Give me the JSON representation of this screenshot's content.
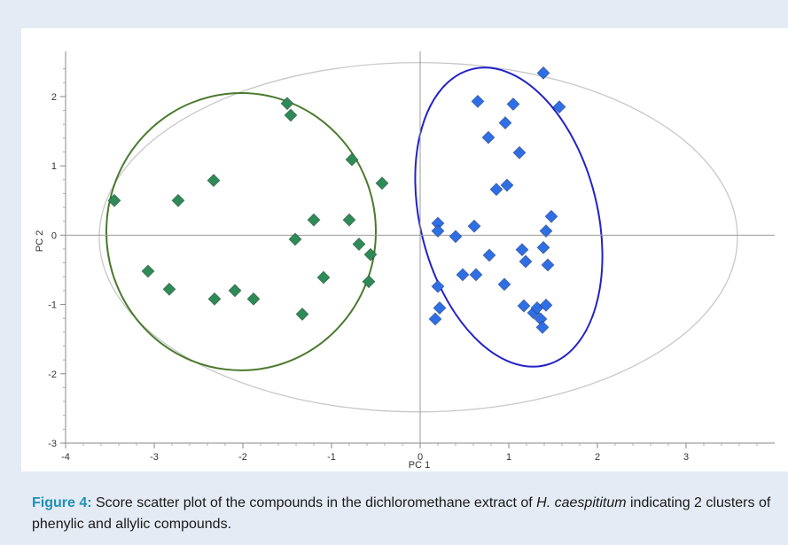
{
  "caption": {
    "label": "Figure 4:",
    "text_before": " Score scatter plot of the compounds in the dichloromethane extract of ",
    "species": "H. caespititum",
    "text_after": " indicating 2 clusters of phenylic and allylic compounds."
  },
  "colors": {
    "panel_background": "#e4ebf5",
    "caption_label": "#1f8fb8",
    "cluster_green": "#2e8b57",
    "cluster_green_outline": "#4a7a2e",
    "cluster_blue": "#2f6fe6",
    "cluster_blue_outline": "#2222c8",
    "hotelling_ellipse": "#c8c8c8"
  },
  "chart_data": {
    "type": "scatter",
    "title": "",
    "xlabel": "PC 1",
    "ylabel": "PC 2",
    "xlim": [
      -4,
      4
    ],
    "ylim": [
      -3,
      2.6
    ],
    "xticks": [
      -4,
      -3,
      -2,
      -1,
      0,
      1,
      2,
      3
    ],
    "yticks": [
      -3,
      -2,
      -1,
      0,
      1,
      2
    ],
    "grid": false,
    "legend": "none",
    "marker": "diamond",
    "series": [
      {
        "color": "#2e8b57",
        "points": [
          [
            -3.45,
            0.5
          ],
          [
            -3.07,
            -0.52
          ],
          [
            -2.83,
            -0.78
          ],
          [
            -2.73,
            0.5
          ],
          [
            -2.33,
            0.79
          ],
          [
            -2.32,
            -0.92
          ],
          [
            -2.09,
            -0.8
          ],
          [
            -1.88,
            -0.92
          ],
          [
            -1.5,
            1.9
          ],
          [
            -1.46,
            1.73
          ],
          [
            -1.41,
            -0.06
          ],
          [
            -1.33,
            -1.14
          ],
          [
            -1.2,
            0.22
          ],
          [
            -1.09,
            -0.61
          ],
          [
            -0.8,
            0.22
          ],
          [
            -0.77,
            1.09
          ],
          [
            -0.69,
            -0.13
          ],
          [
            -0.56,
            -0.28
          ],
          [
            -0.58,
            -0.67
          ],
          [
            -0.43,
            0.75
          ]
        ]
      },
      {
        "color": "#2f6fe6",
        "points": [
          [
            0.2,
            0.17
          ],
          [
            0.2,
            0.06
          ],
          [
            0.2,
            -0.74
          ],
          [
            0.22,
            -1.05
          ],
          [
            0.17,
            -1.21
          ],
          [
            0.4,
            -0.02
          ],
          [
            0.48,
            -0.57
          ],
          [
            0.61,
            0.13
          ],
          [
            0.63,
            -0.57
          ],
          [
            0.65,
            1.93
          ],
          [
            0.77,
            1.41
          ],
          [
            0.78,
            -0.29
          ],
          [
            0.86,
            0.66
          ],
          [
            0.95,
            -0.71
          ],
          [
            0.96,
            1.62
          ],
          [
            0.98,
            0.72
          ],
          [
            1.05,
            1.89
          ],
          [
            1.12,
            1.19
          ],
          [
            1.15,
            -0.21
          ],
          [
            1.17,
            -1.02
          ],
          [
            1.19,
            -0.38
          ],
          [
            1.28,
            -1.12
          ],
          [
            1.32,
            -1.05
          ],
          [
            1.36,
            -1.21
          ],
          [
            1.38,
            -1.33
          ],
          [
            1.39,
            2.34
          ],
          [
            1.39,
            -0.18
          ],
          [
            1.42,
            0.06
          ],
          [
            1.42,
            -1.01
          ],
          [
            1.44,
            -0.43
          ],
          [
            1.48,
            0.27
          ],
          [
            1.57,
            1.85
          ]
        ]
      }
    ],
    "ellipses": [
      {
        "role": "hotelling",
        "color": "#c8c8c8",
        "center": [
          -0.02,
          -0.03
        ],
        "radii": [
          3.6,
          2.52
        ]
      },
      {
        "role": "cluster",
        "color": "#4a7a2e",
        "center": [
          -2.02,
          0.05
        ],
        "radii": [
          1.52,
          2.0
        ]
      },
      {
        "role": "cluster",
        "color": "#2222c8",
        "center": [
          1.0,
          0.26
        ],
        "radii": [
          1.0,
          2.2
        ],
        "rotation_deg": -14
      }
    ]
  }
}
